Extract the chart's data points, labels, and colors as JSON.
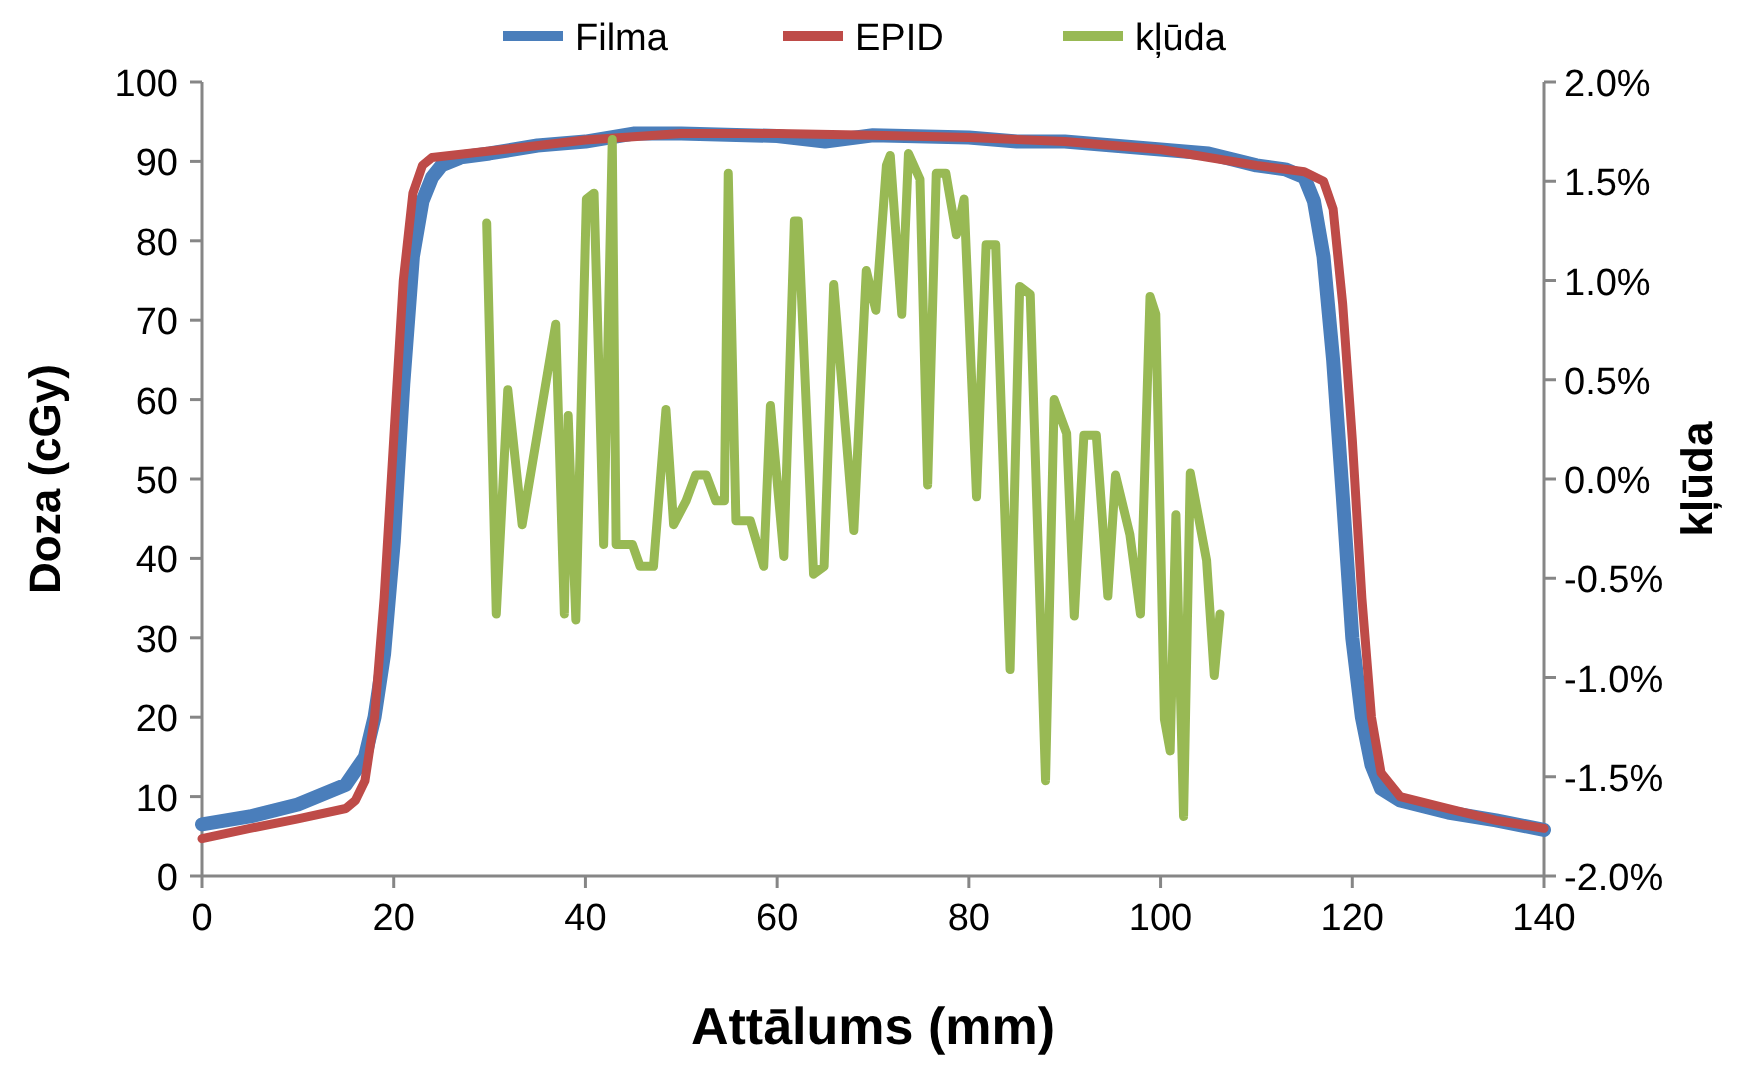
{
  "chart_data": {
    "type": "line",
    "xlabel": "Attālums (mm)",
    "ylabel": "Doza (cGy)",
    "y2label": "kļūda",
    "legend": "top",
    "grid": false,
    "marker": "none",
    "line_style": "solid",
    "xlim": [
      0,
      140
    ],
    "xticks": [
      0,
      20,
      40,
      60,
      80,
      100,
      120,
      140
    ],
    "ylim": [
      0,
      100
    ],
    "yticks": [
      0,
      10,
      20,
      30,
      40,
      50,
      60,
      70,
      80,
      90,
      100
    ],
    "y2lim": [
      -2,
      2
    ],
    "y2ticks": [
      {
        "value": -2,
        "label": "-2.0%"
      },
      {
        "value": -1.5,
        "label": "-1.5%"
      },
      {
        "value": -1,
        "label": "-1.0%"
      },
      {
        "value": -0.5,
        "label": "-0.5%"
      },
      {
        "value": 0,
        "label": "0.0%"
      },
      {
        "value": 0.5,
        "label": "0.5%"
      },
      {
        "value": 1,
        "label": "1.0%"
      },
      {
        "value": 1.5,
        "label": "1.5%"
      },
      {
        "value": 2,
        "label": "2.0%"
      }
    ],
    "series": [
      {
        "name": "Filma",
        "color": "#4a7ebb",
        "x": [
          0,
          5,
          10,
          15,
          17,
          18,
          19,
          20,
          21,
          22,
          23,
          24,
          25,
          27,
          30,
          35,
          40,
          45,
          50,
          60,
          65,
          70,
          80,
          85,
          90,
          95,
          100,
          105,
          110,
          113,
          115,
          116,
          117,
          118,
          119,
          120,
          121,
          122,
          123,
          125,
          130,
          135,
          140
        ],
        "values": [
          6.5,
          7.5,
          9,
          11.5,
          15,
          20,
          28,
          42,
          62,
          78,
          85,
          88,
          89.5,
          90.5,
          91,
          92,
          92.5,
          93.5,
          93.5,
          93.2,
          92.5,
          93.3,
          93,
          92.5,
          92.5,
          92,
          91.5,
          91,
          89.5,
          89,
          88,
          85,
          78,
          65,
          48,
          30,
          20,
          14,
          11,
          9.5,
          8,
          7,
          5.8
        ]
      },
      {
        "name": "EPID",
        "color": "#be4b48",
        "x": [
          0,
          5,
          10,
          15,
          16,
          17,
          18,
          19,
          20,
          21,
          22,
          23,
          24,
          30,
          40,
          50,
          60,
          70,
          80,
          90,
          100,
          110,
          115,
          117,
          118,
          119,
          120,
          121,
          122,
          123,
          125,
          130,
          135,
          140
        ],
        "values": [
          4.7,
          6,
          7.2,
          8.5,
          9.5,
          12,
          20,
          35,
          55,
          75,
          86,
          89.5,
          90.5,
          91.3,
          92.7,
          93.5,
          93.5,
          93.3,
          93,
          92.5,
          91.5,
          89.5,
          88.7,
          87.5,
          84,
          72,
          55,
          35,
          20,
          13,
          10,
          8.5,
          7,
          6
        ]
      },
      {
        "name": "kļūda",
        "color": "#98b954",
        "axis": "y2",
        "x": [
          29.7,
          30.7,
          31.9,
          33.4,
          36.9,
          37.8,
          38.2,
          39.0,
          40.1,
          40.9,
          41.9,
          42.8,
          43.2,
          44.9,
          45.7,
          47.1,
          48.4,
          49.2,
          50.5,
          51.5,
          52.6,
          53.6,
          54.5,
          54.9,
          55.7,
          57.2,
          58.6,
          59.3,
          60.7,
          61.8,
          62.2,
          63.8,
          64.9,
          65.9,
          68.0,
          69.3,
          70.3,
          71.4,
          71.8,
          73.0,
          73.7,
          74.9,
          75.7,
          76.6,
          77.6,
          78.7,
          79.5,
          80.8,
          81.8,
          82.8,
          84.3,
          85.3,
          86.4,
          88.0,
          88.9,
          90.2,
          91.0,
          92.0,
          93.3,
          94.5,
          95.3,
          96.8,
          97.9,
          98.9,
          99.5,
          100.4,
          101.0,
          101.6,
          102.4,
          103.1,
          104.8,
          105.6,
          106.2
        ],
        "values": [
          1.29,
          -0.68,
          0.45,
          -0.23,
          0.78,
          -0.68,
          0.32,
          -0.71,
          1.41,
          1.44,
          -0.33,
          1.71,
          -0.33,
          -0.33,
          -0.44,
          -0.44,
          0.35,
          -0.23,
          -0.11,
          0.02,
          0.02,
          -0.11,
          -0.11,
          1.54,
          -0.21,
          -0.21,
          -0.44,
          0.37,
          -0.39,
          1.3,
          1.3,
          -0.48,
          -0.44,
          0.98,
          -0.26,
          1.05,
          0.85,
          1.58,
          1.63,
          0.83,
          1.64,
          1.51,
          -0.03,
          1.54,
          1.54,
          1.23,
          1.41,
          -0.09,
          1.18,
          1.18,
          -0.96,
          0.97,
          0.93,
          -1.52,
          0.4,
          0.23,
          -0.69,
          0.22,
          0.22,
          -0.59,
          0.02,
          -0.28,
          -0.68,
          0.92,
          0.83,
          -1.21,
          -1.37,
          -0.18,
          -1.7,
          0.03,
          -0.41,
          -0.99,
          -0.68
        ]
      }
    ]
  }
}
